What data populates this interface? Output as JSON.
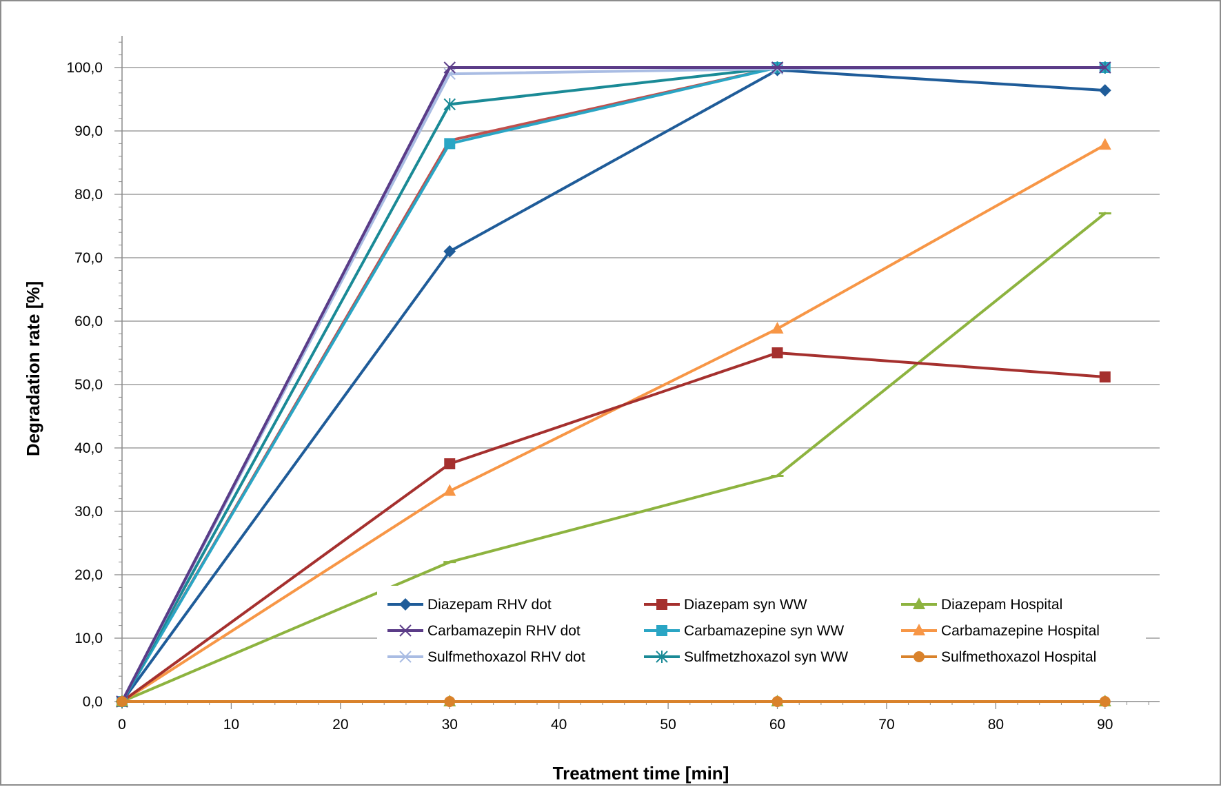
{
  "chart_data": {
    "type": "line",
    "title": "",
    "xlabel": "Treatment time [min]",
    "ylabel": "Degradation rate [%]",
    "xlim": [
      0,
      95
    ],
    "ylim": [
      0,
      100
    ],
    "x_ticks": [
      {
        "value": 0,
        "label": "0"
      },
      {
        "value": 10,
        "label": "10"
      },
      {
        "value": 20,
        "label": "20"
      },
      {
        "value": 30,
        "label": "30"
      },
      {
        "value": 40,
        "label": "40"
      },
      {
        "value": 50,
        "label": "50"
      },
      {
        "value": 60,
        "label": "60"
      },
      {
        "value": 70,
        "label": "70"
      },
      {
        "value": 80,
        "label": "80"
      },
      {
        "value": 90,
        "label": "90"
      }
    ],
    "y_ticks": [
      {
        "value": 0,
        "label": "0,0"
      },
      {
        "value": 10,
        "label": "10,0"
      },
      {
        "value": 20,
        "label": "20,0"
      },
      {
        "value": 30,
        "label": "30,0"
      },
      {
        "value": 40,
        "label": "40,0"
      },
      {
        "value": 50,
        "label": "50,0"
      },
      {
        "value": 60,
        "label": "60,0"
      },
      {
        "value": 70,
        "label": "70,0"
      },
      {
        "value": 80,
        "label": "80,0"
      },
      {
        "value": 90,
        "label": "90,0"
      },
      {
        "value": 100,
        "label": "100,0"
      }
    ],
    "grid": "horizontal",
    "legend_position": "bottom-right inside plot",
    "x": [
      0,
      30,
      60,
      90
    ],
    "series": [
      {
        "name": "Diazepam RHV dot",
        "color": "#1F5C99",
        "marker": "diamond",
        "values": [
          0,
          71.0,
          99.6,
          96.4
        ]
      },
      {
        "name": "Diazepam syn WW",
        "color": "#A5302E",
        "marker": "square",
        "values": [
          0,
          37.5,
          55.0,
          51.2
        ]
      },
      {
        "name": "Diazepam Hospital",
        "color": "#8DB33F",
        "marker": "triangle",
        "values": [
          0,
          0,
          0,
          0
        ]
      },
      {
        "name": "Carbamazepin RHV dot",
        "color": "#5B3C88",
        "marker": "x",
        "values": [
          0,
          100,
          100,
          100
        ]
      },
      {
        "name": "Carbamazepine syn WW",
        "color": "#2AA5C4",
        "marker": "square",
        "values": [
          0,
          88.0,
          100,
          100
        ]
      },
      {
        "name": "Carbamazepine Hospital",
        "color": "#F79646",
        "marker": "triangle",
        "values": [
          0,
          33.2,
          58.8,
          87.8
        ]
      },
      {
        "name": "Sulfmethoxazol RHV dot",
        "color": "#A9BCE3",
        "marker": "x",
        "values": [
          0,
          99.0,
          99.8,
          100
        ]
      },
      {
        "name": "Sulfmetzhoxazol syn WW",
        "color": "#1A8A96",
        "marker": "star",
        "values": [
          0,
          94.2,
          100,
          100
        ]
      },
      {
        "name": "Sulfmethoxazol Hospital",
        "color": "#D9822B",
        "marker": "circle",
        "values": [
          0,
          0,
          0,
          0
        ]
      }
    ],
    "unlabeled_series": [
      {
        "color": "#3A72B0",
        "marker": "none",
        "values": [
          0,
          100,
          100,
          100
        ]
      },
      {
        "color": "#C0504D",
        "marker": "none",
        "values": [
          0,
          88.5,
          100,
          100
        ]
      },
      {
        "color": "#8DB33F",
        "marker": "dash",
        "values": [
          0,
          22.0,
          35.6,
          77.0
        ]
      }
    ]
  }
}
